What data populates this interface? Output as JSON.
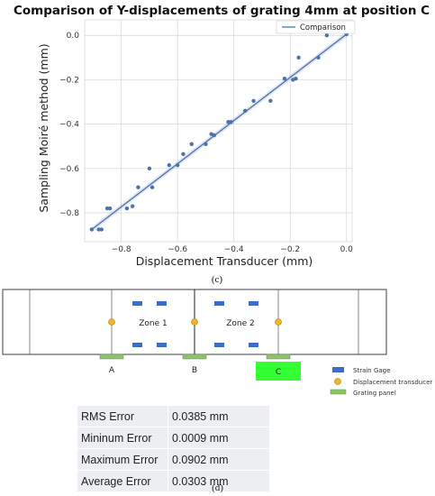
{
  "chart_data": {
    "type": "scatter",
    "title": "Comparison of Y-displacements of grating 4mm at position C",
    "xlabel": "Displacement Transducer (mm)",
    "ylabel": "Sampling Moiré method (mm)",
    "xlim": [
      -0.93,
      0.02
    ],
    "ylim": [
      -0.93,
      0.07
    ],
    "x_ticks": [
      -0.8,
      -0.6,
      -0.4,
      -0.2,
      0.0
    ],
    "x_tick_labels": [
      "−0.8",
      "−0.6",
      "−0.4",
      "−0.2",
      "0.0"
    ],
    "y_ticks": [
      -0.8,
      -0.6,
      -0.4,
      -0.2,
      0.0
    ],
    "y_tick_labels": [
      "−0.8",
      "−0.6",
      "−0.4",
      "−0.2",
      "0.0"
    ],
    "grid": true,
    "legend_position": "top-right",
    "series": [
      {
        "name": "Comparison",
        "kind": "fit-line",
        "color": "#4c72b0",
        "x": [
          -0.905,
          0.0
        ],
        "y": [
          -0.875,
          0.005
        ]
      },
      {
        "kind": "points",
        "color": "#4c72b0",
        "x": [
          -0.905,
          -0.88,
          -0.87,
          -0.85,
          -0.84,
          -0.78,
          -0.76,
          -0.74,
          -0.7,
          -0.69,
          -0.63,
          -0.6,
          -0.58,
          -0.55,
          -0.5,
          -0.48,
          -0.47,
          -0.42,
          -0.41,
          -0.36,
          -0.33,
          -0.27,
          -0.22,
          -0.19,
          -0.18,
          -0.17,
          -0.1,
          -0.07,
          0.0
        ],
        "y": [
          -0.875,
          -0.875,
          -0.875,
          -0.78,
          -0.78,
          -0.78,
          -0.77,
          -0.685,
          -0.6,
          -0.685,
          -0.585,
          -0.585,
          -0.535,
          -0.49,
          -0.49,
          -0.445,
          -0.45,
          -0.39,
          -0.39,
          -0.34,
          -0.295,
          -0.295,
          -0.195,
          -0.2,
          -0.195,
          -0.1,
          -0.1,
          0.0,
          0.005
        ]
      }
    ]
  },
  "captions": {
    "c": "(c)",
    "d": "(d)"
  },
  "diagram": {
    "zones": [
      "Zone 1",
      "Zone 2"
    ],
    "positions": [
      "A",
      "B",
      "C"
    ],
    "legend": [
      "Strain Gage",
      "Displacement transducer",
      "Grating panel"
    ],
    "colors": {
      "gage": "#3f6cc4",
      "transducer": "#f0b52a",
      "panel": "#8dc26b",
      "highlight": "#33ff33"
    }
  },
  "errors": [
    {
      "label": "RMS Error",
      "value": "0.0385 mm"
    },
    {
      "label": "Mininum Error",
      "value": "0.0009 mm"
    },
    {
      "label": "Maximum Error",
      "value": "0.0902 mm"
    },
    {
      "label": "Average Error",
      "value": "0.0303 mm"
    }
  ]
}
